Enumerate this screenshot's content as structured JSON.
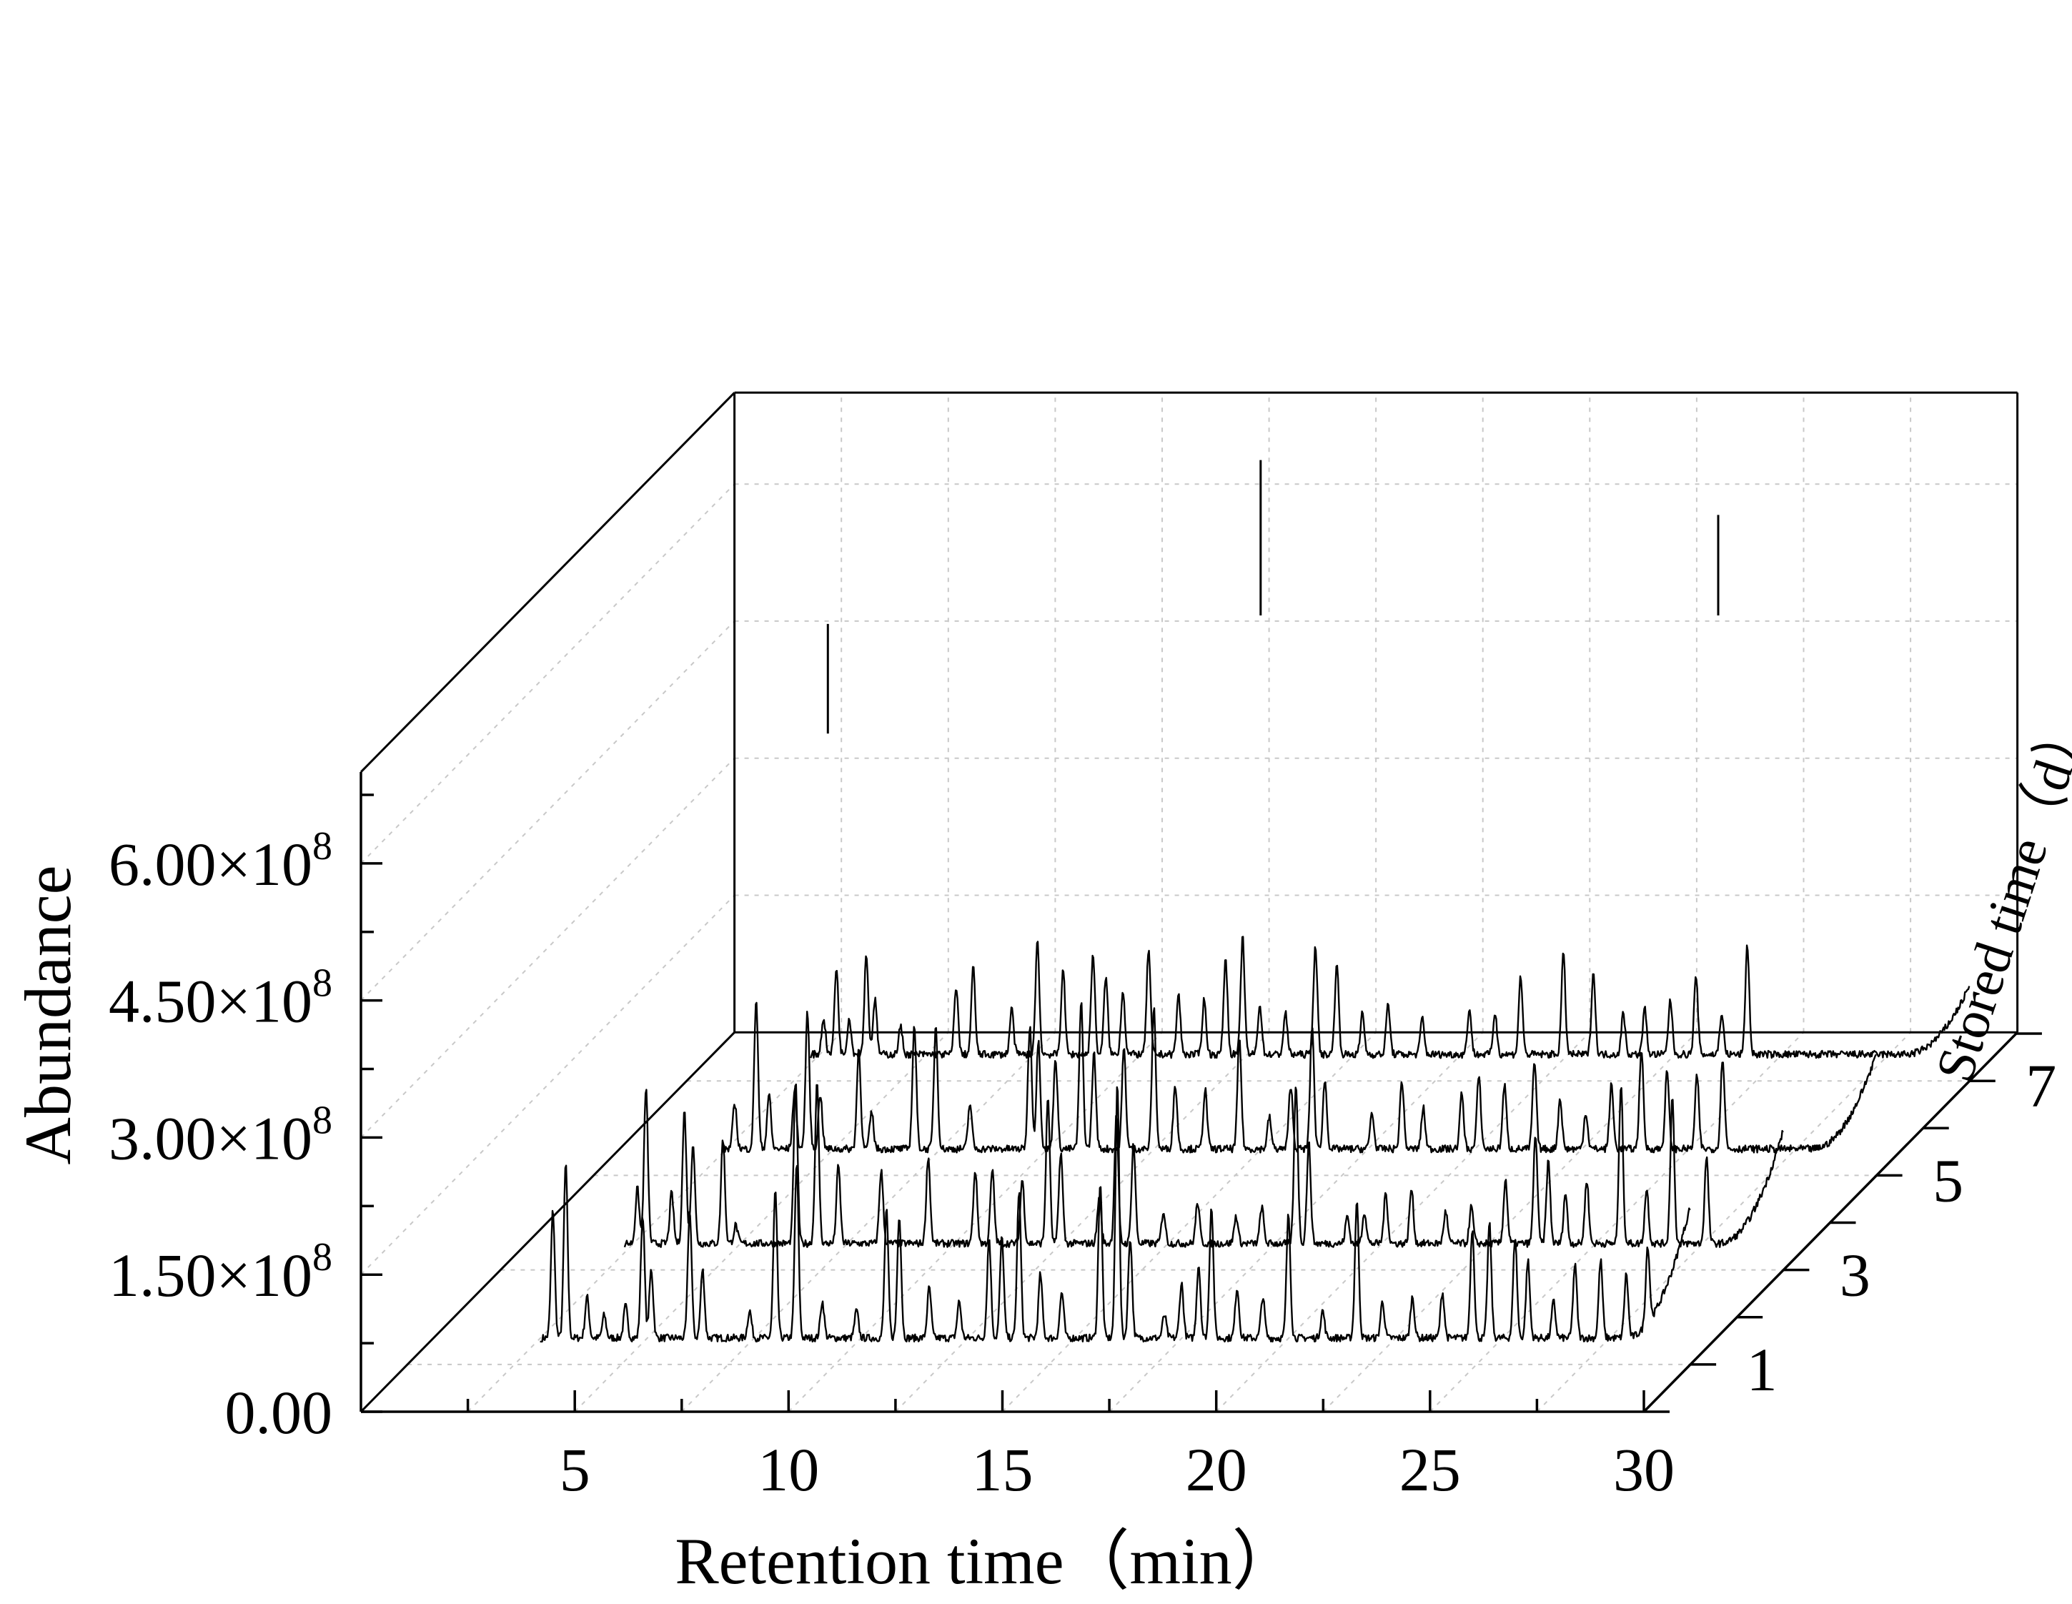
{
  "chart_data": {
    "type": "line",
    "title": "",
    "xlabel": "Retention time（min）",
    "ylabel": "Abundance",
    "zlabel": "Stored time（d）",
    "x_ticks": [
      "5",
      "10",
      "15",
      "20",
      "25",
      "30"
    ],
    "x_tick_values": [
      5,
      10,
      15,
      20,
      25,
      30
    ],
    "y_ticks": [
      "0.00",
      "1.50×10",
      "3.00×10",
      "4.50×10",
      "6.00×10"
    ],
    "y_tick_exponent": "8",
    "y_tick_values": [
      0,
      150000000,
      300000000,
      450000000,
      600000000
    ],
    "z_ticks": [
      "1",
      "3",
      "5",
      "7"
    ],
    "z_tick_values": [
      1,
      3,
      5,
      7
    ],
    "xlim": [
      0,
      30
    ],
    "ylim": [
      0,
      700000000
    ],
    "grid": true,
    "projection": "3d-waterfall",
    "series": [
      {
        "name": "1",
        "baseline": 25000000,
        "peaks": [
          [
            3.4,
            140000000
          ],
          [
            3.7,
            190000000
          ],
          [
            4.2,
            45000000
          ],
          [
            4.6,
            25000000
          ],
          [
            5.1,
            35000000
          ],
          [
            5.5,
            135000000
          ],
          [
            5.7,
            75000000
          ],
          [
            6.6,
            140000000
          ],
          [
            6.9,
            75000000
          ],
          [
            8.0,
            30000000
          ],
          [
            8.6,
            160000000
          ],
          [
            9.1,
            190000000
          ],
          [
            9.7,
            40000000
          ],
          [
            10.5,
            30000000
          ],
          [
            11.2,
            140000000
          ],
          [
            11.5,
            135000000
          ],
          [
            12.2,
            55000000
          ],
          [
            12.9,
            40000000
          ],
          [
            13.6,
            110000000
          ],
          [
            13.9,
            110000000
          ],
          [
            14.3,
            160000000
          ],
          [
            14.8,
            70000000
          ],
          [
            15.3,
            50000000
          ],
          [
            16.2,
            170000000
          ],
          [
            16.6,
            280000000
          ],
          [
            16.9,
            110000000
          ],
          [
            17.7,
            25000000
          ],
          [
            18.1,
            60000000
          ],
          [
            18.5,
            80000000
          ],
          [
            18.8,
            145000000
          ],
          [
            19.4,
            55000000
          ],
          [
            20.0,
            45000000
          ],
          [
            20.6,
            135000000
          ],
          [
            21.4,
            30000000
          ],
          [
            22.2,
            150000000
          ],
          [
            22.8,
            40000000
          ],
          [
            23.5,
            45000000
          ],
          [
            24.2,
            50000000
          ],
          [
            24.9,
            120000000
          ],
          [
            25.3,
            125000000
          ],
          [
            25.9,
            110000000
          ],
          [
            26.2,
            85000000
          ],
          [
            26.8,
            40000000
          ],
          [
            27.3,
            80000000
          ],
          [
            27.9,
            85000000
          ],
          [
            28.5,
            70000000
          ],
          [
            29.0,
            85000000
          ]
        ],
        "tail_end": 170000000
      },
      {
        "name": "3",
        "baseline": 25000000,
        "peaks": [
          [
            3.2,
            60000000
          ],
          [
            3.4,
            170000000
          ],
          [
            4.0,
            55000000
          ],
          [
            4.3,
            145000000
          ],
          [
            4.5,
            110000000
          ],
          [
            5.2,
            115000000
          ],
          [
            5.5,
            20000000
          ],
          [
            6.9,
            175000000
          ],
          [
            7.4,
            175000000
          ],
          [
            7.9,
            85000000
          ],
          [
            8.9,
            80000000
          ],
          [
            10.0,
            95000000
          ],
          [
            11.1,
            80000000
          ],
          [
            11.5,
            80000000
          ],
          [
            12.2,
            70000000
          ],
          [
            12.8,
            160000000
          ],
          [
            13.1,
            100000000
          ],
          [
            14.0,
            50000000
          ],
          [
            14.4,
            140000000
          ],
          [
            14.8,
            110000000
          ],
          [
            15.5,
            35000000
          ],
          [
            16.3,
            45000000
          ],
          [
            17.2,
            30000000
          ],
          [
            17.8,
            40000000
          ],
          [
            18.6,
            175000000
          ],
          [
            18.9,
            110000000
          ],
          [
            19.8,
            30000000
          ],
          [
            20.2,
            35000000
          ],
          [
            20.7,
            55000000
          ],
          [
            21.3,
            60000000
          ],
          [
            22.1,
            35000000
          ],
          [
            22.7,
            40000000
          ],
          [
            23.5,
            70000000
          ],
          [
            24.2,
            120000000
          ],
          [
            24.5,
            90000000
          ],
          [
            24.9,
            55000000
          ],
          [
            25.4,
            70000000
          ],
          [
            26.2,
            175000000
          ],
          [
            26.8,
            60000000
          ],
          [
            27.4,
            160000000
          ],
          [
            28.2,
            95000000
          ]
        ],
        "tail_end": 150000000
      },
      {
        "name": "5",
        "baseline": 25000000,
        "peaks": [
          [
            3.3,
            50000000
          ],
          [
            3.8,
            165000000
          ],
          [
            4.1,
            60000000
          ],
          [
            4.7,
            65000000
          ],
          [
            5.0,
            150000000
          ],
          [
            5.3,
            60000000
          ],
          [
            6.2,
            110000000
          ],
          [
            6.5,
            40000000
          ],
          [
            7.5,
            135000000
          ],
          [
            8.0,
            135000000
          ],
          [
            8.8,
            50000000
          ],
          [
            10.2,
            135000000
          ],
          [
            10.4,
            120000000
          ],
          [
            10.8,
            100000000
          ],
          [
            11.4,
            160000000
          ],
          [
            11.7,
            105000000
          ],
          [
            12.4,
            110000000
          ],
          [
            13.1,
            155000000
          ],
          [
            13.6,
            70000000
          ],
          [
            14.3,
            65000000
          ],
          [
            15.1,
            120000000
          ],
          [
            15.8,
            35000000
          ],
          [
            16.3,
            70000000
          ],
          [
            16.8,
            135000000
          ],
          [
            17.1,
            75000000
          ],
          [
            18.2,
            40000000
          ],
          [
            18.9,
            75000000
          ],
          [
            19.4,
            45000000
          ],
          [
            20.3,
            60000000
          ],
          [
            20.7,
            80000000
          ],
          [
            21.3,
            70000000
          ],
          [
            22.0,
            95000000
          ],
          [
            22.6,
            55000000
          ],
          [
            23.2,
            40000000
          ],
          [
            23.8,
            70000000
          ],
          [
            24.5,
            110000000
          ],
          [
            25.1,
            85000000
          ],
          [
            25.8,
            80000000
          ],
          [
            26.4,
            100000000
          ]
        ],
        "tail_end": 130000000
      },
      {
        "name": "7",
        "baseline": 25000000,
        "peaks": [
          [
            3.2,
            40000000
          ],
          [
            3.5,
            95000000
          ],
          [
            3.8,
            40000000
          ],
          [
            4.2,
            110000000
          ],
          [
            4.4,
            60000000
          ],
          [
            5.0,
            30000000
          ],
          [
            6.3,
            75000000
          ],
          [
            6.7,
            95000000
          ],
          [
            7.6,
            50000000
          ],
          [
            8.2,
            125000000
          ],
          [
            8.8,
            95000000
          ],
          [
            9.5,
            110000000
          ],
          [
            9.8,
            85000000
          ],
          [
            10.2,
            70000000
          ],
          [
            10.8,
            115000000
          ],
          [
            11.5,
            65000000
          ],
          [
            12.1,
            60000000
          ],
          [
            12.6,
            105000000
          ],
          [
            13.0,
            130000000
          ],
          [
            13.4,
            55000000
          ],
          [
            14.0,
            45000000
          ],
          [
            14.7,
            120000000
          ],
          [
            15.2,
            100000000
          ],
          [
            15.8,
            45000000
          ],
          [
            16.4,
            55000000
          ],
          [
            17.2,
            40000000
          ],
          [
            18.3,
            50000000
          ],
          [
            18.9,
            45000000
          ],
          [
            19.5,
            85000000
          ],
          [
            20.5,
            110000000
          ],
          [
            21.2,
            90000000
          ],
          [
            21.9,
            45000000
          ],
          [
            22.4,
            50000000
          ],
          [
            23.0,
            60000000
          ],
          [
            23.6,
            85000000
          ],
          [
            24.2,
            45000000
          ],
          [
            24.8,
            120000000
          ]
        ],
        "tail_end": 100000000
      }
    ],
    "backwall_sticks": [
      {
        "x": 3.3,
        "z": 7,
        "y": 120000000
      },
      {
        "x": 10.7,
        "z": 9.5,
        "y": 170000000
      },
      {
        "x": 21.4,
        "z": 9.5,
        "y": 110000000
      },
      {
        "x": 30.0,
        "z": 9.5,
        "y": 130000000
      }
    ]
  }
}
